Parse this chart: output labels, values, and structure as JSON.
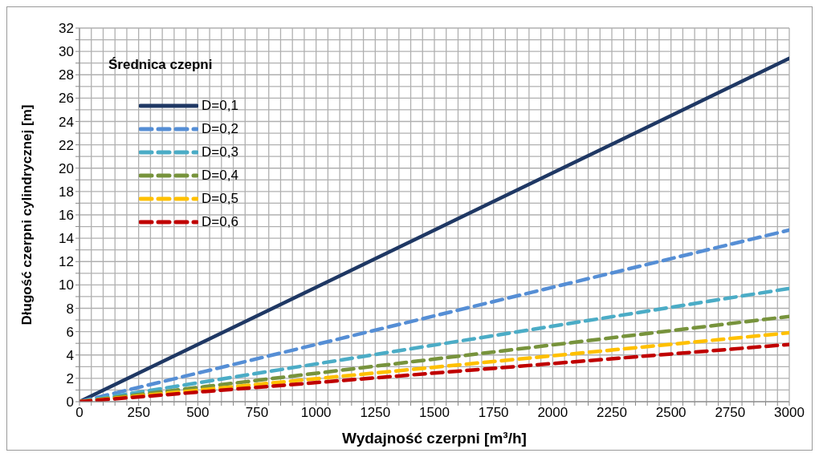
{
  "chart_data": {
    "type": "line",
    "xlabel": "Wydajność czerpni  [m³/h]",
    "ylabel": "Długość czerpni cylindrycznej [m]",
    "legend_title": "Średnica czepni",
    "x": [
      0,
      3000
    ],
    "series": [
      {
        "name": "D=0,1",
        "color": "#1f3864",
        "values": [
          0,
          29.4
        ],
        "line_style": "solid"
      },
      {
        "name": "D=0,2",
        "color": "#558ed5",
        "values": [
          0,
          14.7
        ],
        "line_style": "dashed"
      },
      {
        "name": "D=0,3",
        "color": "#4bacc6",
        "values": [
          0,
          9.7
        ],
        "line_style": "dashed"
      },
      {
        "name": "D=0,4",
        "color": "#77933c",
        "values": [
          0,
          7.3
        ],
        "line_style": "dashed"
      },
      {
        "name": "D=0,5",
        "color": "#ffc000",
        "values": [
          0,
          5.9
        ],
        "line_style": "dashed"
      },
      {
        "name": "D=0,6",
        "color": "#c00000",
        "values": [
          0,
          4.9
        ],
        "line_style": "dashed"
      }
    ],
    "xlim": [
      0,
      3000
    ],
    "xticks": [
      0,
      {
        "value": 50,
        "label": null
      },
      {
        "value": 100,
        "label": null
      },
      {
        "value": 150,
        "label": null
      },
      {
        "value": 200,
        "label": null
      },
      250,
      {
        "value": 300,
        "label": null
      },
      {
        "value": 350,
        "label": null
      },
      {
        "value": 400,
        "label": null
      },
      {
        "value": 450,
        "label": null
      },
      500,
      {
        "value": 550,
        "label": null
      },
      {
        "value": 600,
        "label": null
      },
      {
        "value": 650,
        "label": null
      },
      {
        "value": 700,
        "label": null
      },
      750,
      {
        "value": 800,
        "label": null
      },
      {
        "value": 850,
        "label": null
      },
      {
        "value": 900,
        "label": null
      },
      {
        "value": 950,
        "label": null
      },
      1000,
      {
        "value": 1050,
        "label": null
      },
      {
        "value": 1100,
        "label": null
      },
      {
        "value": 1150,
        "label": null
      },
      {
        "value": 1200,
        "label": null
      },
      1250,
      {
        "value": 1300,
        "label": null
      },
      {
        "value": 1350,
        "label": null
      },
      {
        "value": 1400,
        "label": null
      },
      {
        "value": 1450,
        "label": null
      },
      1500,
      {
        "value": 1550,
        "label": null
      },
      {
        "value": 1600,
        "label": null
      },
      {
        "value": 1650,
        "label": null
      },
      {
        "value": 1700,
        "label": null
      },
      1750,
      {
        "value": 1800,
        "label": null
      },
      {
        "value": 1850,
        "label": null
      },
      {
        "value": 1900,
        "label": null
      },
      {
        "value": 1950,
        "label": null
      },
      2000,
      {
        "value": 2050,
        "label": null
      },
      {
        "value": 2100,
        "label": null
      },
      {
        "value": 2150,
        "label": null
      },
      {
        "value": 2200,
        "label": null
      },
      2250,
      {
        "value": 2300,
        "label": null
      },
      {
        "value": 2350,
        "label": null
      },
      {
        "value": 2400,
        "label": null
      },
      {
        "value": 2450,
        "label": null
      },
      2500,
      {
        "value": 2550,
        "label": null
      },
      {
        "value": 2600,
        "label": null
      },
      {
        "value": 2650,
        "label": null
      },
      {
        "value": 2700,
        "label": null
      },
      2750,
      {
        "value": 2800,
        "label": null
      },
      {
        "value": 2850,
        "label": null
      },
      {
        "value": 2900,
        "label": null
      },
      {
        "value": 2950,
        "label": null
      },
      3000
    ],
    "ylim": [
      0,
      32
    ],
    "yticks": [
      0,
      {
        "value": 1,
        "label": null
      },
      2,
      {
        "value": 3,
        "label": null
      },
      4,
      {
        "value": 5,
        "label": null
      },
      6,
      {
        "value": 7,
        "label": null
      },
      8,
      {
        "value": 9,
        "label": null
      },
      10,
      {
        "value": 11,
        "label": null
      },
      12,
      {
        "value": 13,
        "label": null
      },
      14,
      {
        "value": 15,
        "label": null
      },
      16,
      {
        "value": 17,
        "label": null
      },
      18,
      {
        "value": 19,
        "label": null
      },
      20,
      {
        "value": 21,
        "label": null
      },
      22,
      {
        "value": 23,
        "label": null
      },
      24,
      {
        "value": 25,
        "label": null
      },
      26,
      {
        "value": 27,
        "label": null
      },
      28,
      {
        "value": 29,
        "label": null
      },
      30,
      {
        "value": 31,
        "label": null
      },
      32
    ],
    "grid": true,
    "legend": "top left",
    "marker": "none"
  }
}
